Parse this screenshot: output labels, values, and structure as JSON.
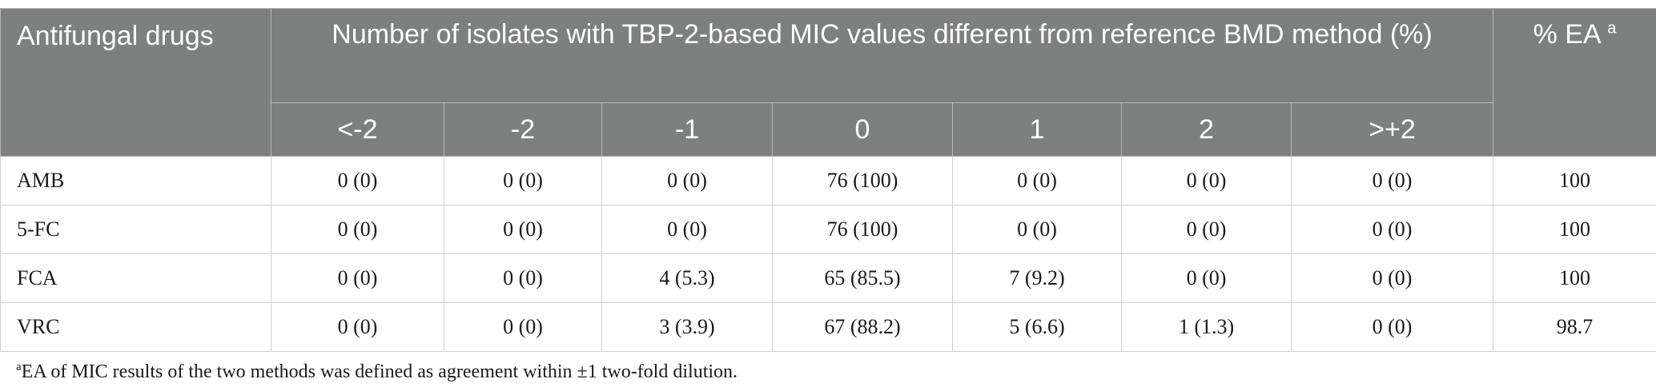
{
  "table": {
    "col_drug": "Antifungal drugs",
    "group_header": "Number of isolates with TBP-2-based MIC values different from reference BMD method (%)",
    "ea_header": "% EA",
    "ea_marker": "a",
    "sub_headers": [
      "<-2",
      "-2",
      "-1",
      "0",
      "1",
      "2",
      ">+2"
    ],
    "rows": [
      {
        "drug": "AMB",
        "cells": [
          "0 (0)",
          "0 (0)",
          "0 (0)",
          "76 (100)",
          "0 (0)",
          "0 (0)",
          "0 (0)"
        ],
        "ea": "100"
      },
      {
        "drug": "5-FC",
        "cells": [
          "0 (0)",
          "0 (0)",
          "0 (0)",
          "76 (100)",
          "0 (0)",
          "0 (0)",
          "0 (0)"
        ],
        "ea": "100"
      },
      {
        "drug": "FCA",
        "cells": [
          "0 (0)",
          "0 (0)",
          "4 (5.3)",
          "65 (85.5)",
          "7 (9.2)",
          "0 (0)",
          "0 (0)"
        ],
        "ea": "100"
      },
      {
        "drug": "VRC",
        "cells": [
          "0 (0)",
          "0 (0)",
          "3 (3.9)",
          "67 (88.2)",
          "5 (6.6)",
          "1 (1.3)",
          "0 (0)"
        ],
        "ea": "98.7"
      }
    ]
  },
  "footnote": {
    "marker": "a",
    "text": "EA of MIC results of the two methods was defined as agreement within ±1 two-fold dilution."
  },
  "colors": {
    "header_bg": "#7e807f",
    "header_text": "#ffffff",
    "grid": "#cfcfcf"
  }
}
